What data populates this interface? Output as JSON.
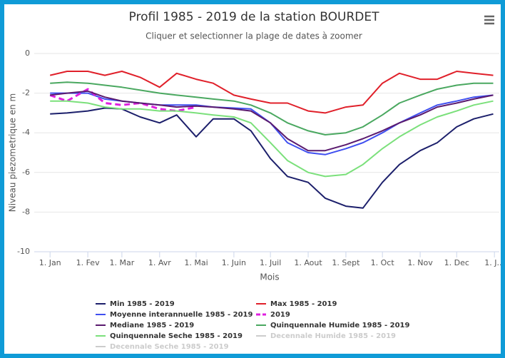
{
  "chart_data": {
    "type": "line",
    "title": "Profil 1985 - 2019 de la station BOURDET",
    "subtitle": "Cliquer et selectionner la plage de dates à zoomer",
    "x_label": "Mois",
    "y_label": "Niveau piezometrique en m",
    "x": [
      1,
      15,
      32,
      46,
      60,
      75,
      91,
      105,
      121,
      135,
      152,
      166,
      182,
      196,
      213,
      227,
      244,
      258,
      274,
      288,
      305,
      319,
      335,
      349,
      365
    ],
    "xlim": [
      -12,
      370
    ],
    "xticks": [
      {
        "value": 1,
        "label": "1. Jan"
      },
      {
        "value": 32,
        "label": "1. Fev"
      },
      {
        "value": 60,
        "label": "1. Mar"
      },
      {
        "value": 91,
        "label": "1. Avr"
      },
      {
        "value": 121,
        "label": "1. Mai"
      },
      {
        "value": 152,
        "label": "1. Juin"
      },
      {
        "value": 182,
        "label": "1. Juil"
      },
      {
        "value": 213,
        "label": "1. Aout"
      },
      {
        "value": 244,
        "label": "1. Sept"
      },
      {
        "value": 274,
        "label": "1. Oct"
      },
      {
        "value": 305,
        "label": "1. Nov"
      },
      {
        "value": 335,
        "label": "1. Dec"
      },
      {
        "value": 366,
        "label": "1. J..."
      }
    ],
    "ylim": [
      -10,
      0
    ],
    "yticks": [
      0,
      -2,
      -4,
      -6,
      -8,
      -10
    ],
    "grid": true,
    "series": [
      {
        "name": "Min 1985 - 2019",
        "color": "#1c1f6b",
        "values": [
          -3.05,
          -3.0,
          -2.9,
          -2.75,
          -2.8,
          -3.2,
          -3.5,
          -3.1,
          -4.2,
          -3.3,
          -3.3,
          -3.9,
          -5.3,
          -6.2,
          -6.5,
          -7.3,
          -7.7,
          -7.8,
          -6.5,
          -5.6,
          -4.9,
          -4.5,
          -3.7,
          -3.3,
          -3.05
        ]
      },
      {
        "name": "Max 1985 - 2019",
        "color": "#e0202a",
        "values": [
          -1.1,
          -0.9,
          -0.9,
          -1.1,
          -0.9,
          -1.2,
          -1.7,
          -1.0,
          -1.3,
          -1.5,
          -2.1,
          -2.3,
          -2.5,
          -2.5,
          -2.9,
          -3.0,
          -2.7,
          -2.6,
          -1.5,
          -1.0,
          -1.3,
          -1.3,
          -0.9,
          -1.0,
          -1.1
        ]
      },
      {
        "name": "Moyenne interannuelle 1985 - 2019",
        "color": "#3f4ff0",
        "values": [
          -2.0,
          -2.0,
          -2.0,
          -2.3,
          -2.4,
          -2.5,
          -2.6,
          -2.6,
          -2.6,
          -2.7,
          -2.75,
          -2.8,
          -3.5,
          -4.5,
          -5.0,
          -5.1,
          -4.8,
          -4.5,
          -4.0,
          -3.5,
          -3.0,
          -2.6,
          -2.4,
          -2.2,
          -2.1
        ]
      },
      {
        "name": "2019",
        "color": "#e020e0",
        "dashed": true,
        "values": [
          -2.1,
          -2.4,
          -1.8,
          -2.5,
          -2.6,
          -2.5,
          -2.8,
          -2.9,
          -2.7,
          null,
          null,
          null,
          null,
          null,
          null,
          null,
          null,
          null,
          null,
          null,
          null,
          null,
          null,
          null,
          null
        ]
      },
      {
        "name": "Mediane 1985 - 2019",
        "color": "#5a1a6e",
        "values": [
          -2.1,
          -2.0,
          -1.9,
          -2.2,
          -2.4,
          -2.5,
          -2.6,
          -2.7,
          -2.65,
          -2.7,
          -2.8,
          -2.9,
          -3.5,
          -4.3,
          -4.9,
          -4.9,
          -4.6,
          -4.3,
          -3.9,
          -3.5,
          -3.1,
          -2.7,
          -2.5,
          -2.3,
          -2.1
        ]
      },
      {
        "name": "Quinquennale Humide 1985 - 2019",
        "color": "#4aa860",
        "values": [
          -1.5,
          -1.45,
          -1.5,
          -1.6,
          -1.7,
          -1.85,
          -2.0,
          -2.1,
          -2.2,
          -2.3,
          -2.4,
          -2.6,
          -3.0,
          -3.5,
          -3.9,
          -4.1,
          -4.0,
          -3.7,
          -3.1,
          -2.5,
          -2.1,
          -1.8,
          -1.6,
          -1.5,
          -1.5
        ]
      },
      {
        "name": "Quinquennale Seche 1985 - 2019",
        "color": "#7be07b",
        "values": [
          -2.4,
          -2.4,
          -2.5,
          -2.7,
          -2.8,
          -2.8,
          -2.9,
          -2.9,
          -3.0,
          -3.1,
          -3.2,
          -3.5,
          -4.5,
          -5.4,
          -6.0,
          -6.2,
          -6.1,
          -5.6,
          -4.8,
          -4.2,
          -3.6,
          -3.2,
          -2.9,
          -2.6,
          -2.4
        ]
      },
      {
        "name": "Decennale Humide 1985 - 2019",
        "color": "#cccccc",
        "visible": false
      },
      {
        "name": "Decennale Seche 1985 - 2019",
        "color": "#cccccc",
        "visible": false
      }
    ]
  }
}
